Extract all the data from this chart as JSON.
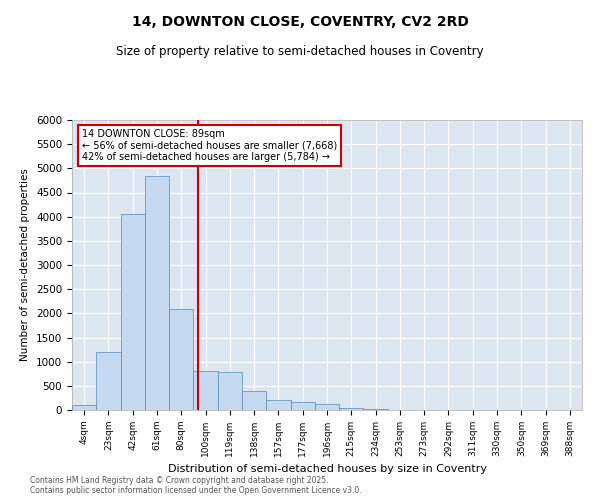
{
  "title_line1": "14, DOWNTON CLOSE, COVENTRY, CV2 2RD",
  "title_line2": "Size of property relative to semi-detached houses in Coventry",
  "xlabel": "Distribution of semi-detached houses by size in Coventry",
  "ylabel": "Number of semi-detached properties",
  "property_label": "14 DOWNTON CLOSE: 89sqm",
  "pct_smaller": 56,
  "pct_larger": 42,
  "count_smaller": 7668,
  "count_larger": 5784,
  "bin_labels": [
    "4sqm",
    "23sqm",
    "42sqm",
    "61sqm",
    "80sqm",
    "100sqm",
    "119sqm",
    "138sqm",
    "157sqm",
    "177sqm",
    "196sqm",
    "215sqm",
    "234sqm",
    "253sqm",
    "273sqm",
    "292sqm",
    "311sqm",
    "330sqm",
    "350sqm",
    "369sqm",
    "388sqm"
  ],
  "bar_values": [
    100,
    1200,
    4050,
    4850,
    2100,
    800,
    790,
    400,
    200,
    175,
    120,
    50,
    15,
    5,
    3,
    2,
    1,
    1,
    0,
    0,
    0
  ],
  "bar_color": "#c5d9f0",
  "bar_edge_color": "#5588bb",
  "vline_color": "#cc0000",
  "vline_pos": 4.7,
  "annotation_box_color": "#cc0000",
  "background_color": "#dce6f1",
  "ylim": [
    0,
    6000
  ],
  "yticks": [
    0,
    500,
    1000,
    1500,
    2000,
    2500,
    3000,
    3500,
    4000,
    4500,
    5000,
    5500,
    6000
  ],
  "footer_line1": "Contains HM Land Registry data © Crown copyright and database right 2025.",
  "footer_line2": "Contains public sector information licensed under the Open Government Licence v3.0."
}
